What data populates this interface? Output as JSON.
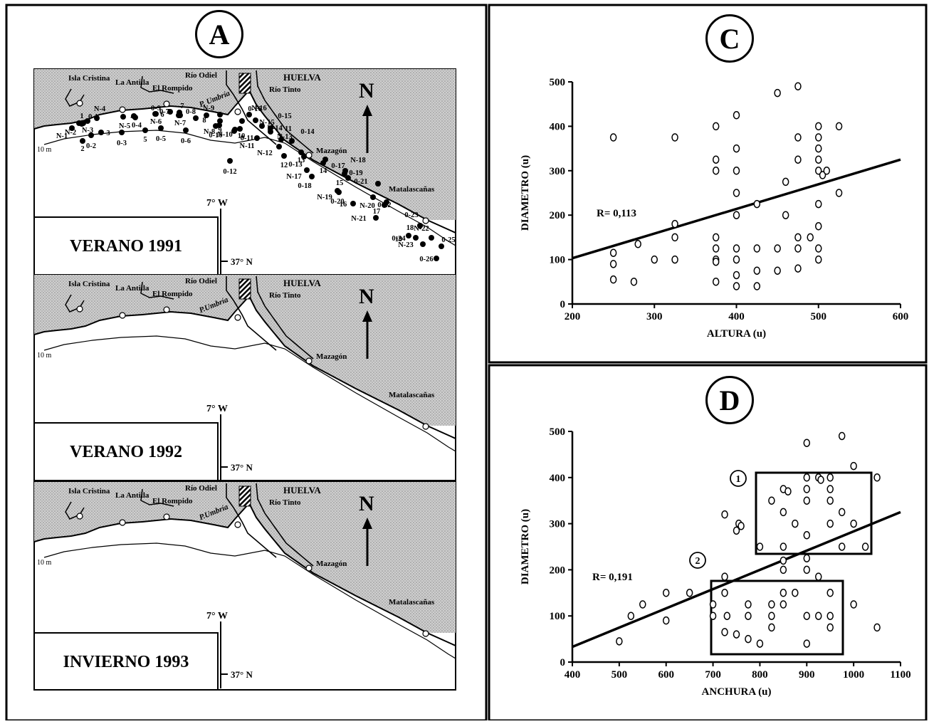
{
  "panels": {
    "a": "A",
    "c": "C",
    "d": "D"
  },
  "maps": [
    {
      "label": "VERANO 1991",
      "places": {
        "isla": "Isla Cristina",
        "antilla": "La Antilla",
        "rompido": "El Rompido",
        "odiel": "Río Odiel",
        "huelva": "HUELVA",
        "tinto": "Río Tinto",
        "umbria": "P. Umbría",
        "mazagon": "Mazagón",
        "matalascanas": "Matalascañas"
      },
      "north": "N",
      "lon": "7° W",
      "lat": "37° N",
      "isobath": "10 m",
      "stations": [
        "1",
        "2",
        "3",
        "4",
        "5",
        "6",
        "7",
        "8",
        "9",
        "10",
        "11",
        "12",
        "13",
        "14",
        "15",
        "16",
        "17",
        "18",
        "19"
      ]
    },
    {
      "label": "VERANO 1992",
      "places": {
        "isla": "Isla Cristina",
        "antilla": "La Antilla",
        "rompido": "El Rompido",
        "odiel": "Río Odiel",
        "huelva": "HUELVA",
        "tinto": "Río Tinto",
        "umbria": "P.Umbría",
        "mazagon": "Mazagón",
        "matalascanas": "Matalascañas"
      },
      "north": "N",
      "lon": "7° W",
      "lat": "37° N",
      "isobath": "10 m",
      "stations": [
        "N-1",
        "N-2",
        "N-3",
        "N-4",
        "N-5",
        "N-6",
        "N-7",
        "N-8",
        "N-9",
        "N-10",
        "N-11",
        "N-12",
        "N-13",
        "N-14",
        "N-15",
        "N-16",
        "N-17",
        "N-18",
        "N-19",
        "N-20",
        "N-21",
        "N-22",
        "N-23"
      ]
    },
    {
      "label": "INVIERNO 1993",
      "places": {
        "isla": "Isla Cristina",
        "antilla": "La Antilla",
        "rompido": "El Rompido",
        "odiel": "Río Odiel",
        "huelva": "HUELVA",
        "tinto": "Río Tinto",
        "umbria": "P.Umbría",
        "mazagon": "Mazagón",
        "matalascanas": "Matalascañas"
      },
      "north": "N",
      "lon": "7° W",
      "lat": "37° N",
      "isobath": "10 m",
      "stations": [
        "0-1",
        "0-2",
        "0-3",
        "0-4",
        "0-5",
        "0-6",
        "0-7",
        "0-8",
        "0-9",
        "0-10",
        "0-11",
        "0-12",
        "0-13",
        "0-14",
        "0-15",
        "0-16",
        "0-17",
        "0-18",
        "0-19",
        "0-20",
        "0-21",
        "0-22",
        "0-23",
        "0-24",
        "0-25",
        "0-26"
      ]
    }
  ],
  "chart_data": [
    {
      "type": "scatter",
      "panel": "C",
      "xlabel": "ALTURA (u)",
      "ylabel": "DIAMETRO (u)",
      "xlim": [
        200,
        600
      ],
      "ylim": [
        0,
        500
      ],
      "xticks": [
        200,
        300,
        400,
        500,
        600
      ],
      "yticks": [
        0,
        100,
        200,
        300,
        400,
        500
      ],
      "annotation": "R= 0,113",
      "fit_line": {
        "x": [
          200,
          600
        ],
        "y": [
          103,
          325
        ]
      },
      "points": [
        [
          250,
          375
        ],
        [
          250,
          115
        ],
        [
          250,
          90
        ],
        [
          250,
          55
        ],
        [
          275,
          50
        ],
        [
          280,
          135
        ],
        [
          300,
          100
        ],
        [
          325,
          375
        ],
        [
          325,
          180
        ],
        [
          325,
          150
        ],
        [
          325,
          100
        ],
        [
          375,
          400
        ],
        [
          375,
          325
        ],
        [
          375,
          300
        ],
        [
          375,
          150
        ],
        [
          375,
          125
        ],
        [
          375,
          100
        ],
        [
          375,
          95
        ],
        [
          375,
          50
        ],
        [
          400,
          425
        ],
        [
          400,
          350
        ],
        [
          400,
          300
        ],
        [
          400,
          250
        ],
        [
          400,
          200
        ],
        [
          400,
          125
        ],
        [
          400,
          100
        ],
        [
          400,
          65
        ],
        [
          400,
          40
        ],
        [
          425,
          225
        ],
        [
          425,
          125
        ],
        [
          425,
          75
        ],
        [
          425,
          40
        ],
        [
          450,
          475
        ],
        [
          450,
          125
        ],
        [
          450,
          75
        ],
        [
          460,
          275
        ],
        [
          460,
          200
        ],
        [
          475,
          490
        ],
        [
          475,
          375
        ],
        [
          475,
          325
        ],
        [
          475,
          150
        ],
        [
          475,
          125
        ],
        [
          475,
          80
        ],
        [
          490,
          150
        ],
        [
          500,
          400
        ],
        [
          500,
          375
        ],
        [
          500,
          350
        ],
        [
          500,
          325
        ],
        [
          500,
          300
        ],
        [
          500,
          225
        ],
        [
          500,
          175
        ],
        [
          500,
          125
        ],
        [
          500,
          100
        ],
        [
          505,
          290
        ],
        [
          510,
          300
        ],
        [
          525,
          400
        ],
        [
          525,
          250
        ]
      ]
    },
    {
      "type": "scatter",
      "panel": "D",
      "xlabel": "ANCHURA (u)",
      "ylabel": "DIAMETRO (u)",
      "xlim": [
        400,
        1100
      ],
      "ylim": [
        0,
        500
      ],
      "xticks": [
        400,
        500,
        600,
        700,
        800,
        900,
        1000,
        1100
      ],
      "yticks": [
        0,
        100,
        200,
        300,
        400,
        500
      ],
      "annotation": "R= 0,191",
      "groups": [
        "1",
        "2"
      ],
      "fit_line": {
        "x": [
          400,
          1100
        ],
        "y": [
          33,
          325
        ]
      },
      "points": [
        [
          500,
          45
        ],
        [
          525,
          100
        ],
        [
          550,
          125
        ],
        [
          600,
          150
        ],
        [
          600,
          90
        ],
        [
          650,
          150
        ],
        [
          700,
          125
        ],
        [
          700,
          100
        ],
        [
          725,
          320
        ],
        [
          725,
          185
        ],
        [
          725,
          150
        ],
        [
          725,
          65
        ],
        [
          730,
          100
        ],
        [
          750,
          285
        ],
        [
          750,
          60
        ],
        [
          755,
          300
        ],
        [
          760,
          295
        ],
        [
          775,
          125
        ],
        [
          775,
          100
        ],
        [
          775,
          50
        ],
        [
          800,
          250
        ],
        [
          800,
          40
        ],
        [
          825,
          350
        ],
        [
          825,
          125
        ],
        [
          825,
          100
        ],
        [
          825,
          75
        ],
        [
          850,
          375
        ],
        [
          850,
          325
        ],
        [
          850,
          250
        ],
        [
          850,
          220
        ],
        [
          850,
          200
        ],
        [
          850,
          150
        ],
        [
          850,
          125
        ],
        [
          860,
          370
        ],
        [
          875,
          300
        ],
        [
          875,
          150
        ],
        [
          900,
          475
        ],
        [
          900,
          400
        ],
        [
          900,
          375
        ],
        [
          900,
          350
        ],
        [
          900,
          275
        ],
        [
          900,
          225
        ],
        [
          900,
          200
        ],
        [
          900,
          100
        ],
        [
          900,
          40
        ],
        [
          925,
          400
        ],
        [
          925,
          185
        ],
        [
          925,
          100
        ],
        [
          930,
          395
        ],
        [
          950,
          400
        ],
        [
          950,
          375
        ],
        [
          950,
          350
        ],
        [
          950,
          300
        ],
        [
          950,
          150
        ],
        [
          950,
          100
        ],
        [
          950,
          75
        ],
        [
          975,
          490
        ],
        [
          975,
          325
        ],
        [
          975,
          250
        ],
        [
          1000,
          425
        ],
        [
          1000,
          300
        ],
        [
          1000,
          125
        ],
        [
          1025,
          250
        ],
        [
          1050,
          400
        ],
        [
          1050,
          75
        ]
      ]
    }
  ]
}
